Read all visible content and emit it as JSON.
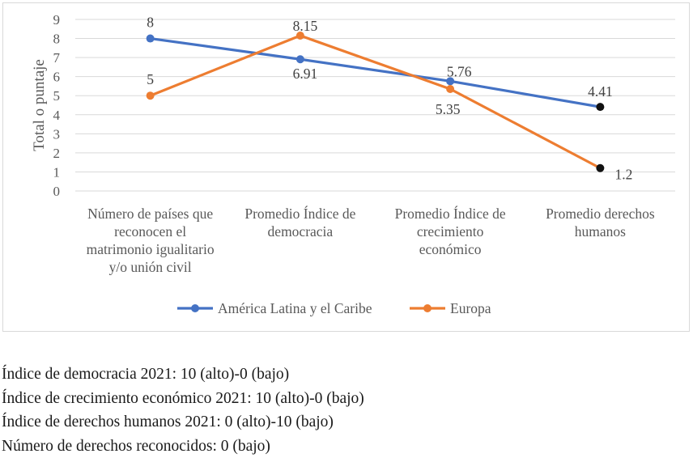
{
  "chart_data": {
    "type": "line",
    "title": "",
    "xlabel": "",
    "ylabel": "Total o puntaje",
    "ylim": [
      0,
      9
    ],
    "yticks": [
      "0",
      "1",
      "2",
      "3",
      "4",
      "5",
      "6",
      "7",
      "8",
      "9"
    ],
    "categories": [
      [
        "Número de países que",
        "reconocen el",
        "matrimonio igualitario",
        "y/o unión civil"
      ],
      [
        "Promedio Índice de",
        "democracia"
      ],
      [
        "Promedio Índice de",
        "crecimiento",
        "económico"
      ],
      [
        "Promedio derechos",
        "humanos"
      ]
    ],
    "series": [
      {
        "name": "América Latina y el Caribe",
        "color": "#4472c4",
        "values": [
          8,
          6.91,
          5.76,
          4.41
        ],
        "labels": [
          "8",
          "6.91",
          "5.76",
          "4.41"
        ]
      },
      {
        "name": "Europa",
        "color": "#ed7d31",
        "values": [
          5,
          8.15,
          5.35,
          1.2
        ],
        "labels": [
          "5",
          "8.15",
          "5.35",
          "1.2"
        ]
      }
    ],
    "legend": "bottom",
    "grid": true
  },
  "notes": [
    "Índice de democracia 2021: 10 (alto)-0 (bajo)",
    "Índice de crecimiento económico 2021: 10 (alto)-0 (bajo)",
    "Índice de derechos humanos 2021: 0 (alto)-10 (bajo)",
    "Número de derechos reconocidos: 0 (bajo)"
  ]
}
